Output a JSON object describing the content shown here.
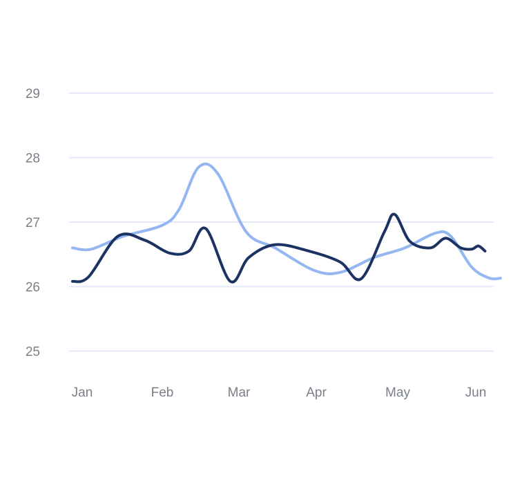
{
  "chart_data": {
    "type": "line",
    "title": "",
    "xlabel": "",
    "ylabel": "",
    "x_tick_labels": [
      "Jan",
      "Feb",
      "Mar",
      "Apr",
      "May",
      "Jun"
    ],
    "y_tick_labels": [
      "25",
      "26",
      "27",
      "28",
      "29"
    ],
    "ylim": [
      25,
      29
    ],
    "grid": true,
    "legend": "none",
    "colors": {
      "series_light": "#94b7f1",
      "series_dark": "#1c3262",
      "grid": "#e4e9fb",
      "tick_text": "#7a7f89"
    },
    "series": [
      {
        "color": "#94b7f1",
        "points": [
          {
            "x": "Jan 1",
            "y": 26.6
          },
          {
            "x": "Jan 8",
            "y": 26.58
          },
          {
            "x": "Jan 20",
            "y": 26.78
          },
          {
            "x": "Feb 5",
            "y": 26.95
          },
          {
            "x": "Feb 12",
            "y": 27.2
          },
          {
            "x": "Feb 20",
            "y": 27.85
          },
          {
            "x": "Feb 28",
            "y": 27.75
          },
          {
            "x": "Mar 9",
            "y": 26.85
          },
          {
            "x": "Mar 20",
            "y": 26.6
          },
          {
            "x": "Apr 5",
            "y": 26.25
          },
          {
            "x": "Apr 15",
            "y": 26.22
          },
          {
            "x": "Apr 28",
            "y": 26.45
          },
          {
            "x": "May 10",
            "y": 26.6
          },
          {
            "x": "May 22",
            "y": 26.83
          },
          {
            "x": "May 28",
            "y": 26.78
          },
          {
            "x": "Jun 7",
            "y": 26.3
          },
          {
            "x": "Jun 15",
            "y": 26.13
          },
          {
            "x": "Jun 20",
            "y": 26.13
          }
        ]
      },
      {
        "color": "#1c3262",
        "points": [
          {
            "x": "Jan 1",
            "y": 26.08
          },
          {
            "x": "Jan 7",
            "y": 26.15
          },
          {
            "x": "Jan 18",
            "y": 26.78
          },
          {
            "x": "Jan 28",
            "y": 26.72
          },
          {
            "x": "Feb 8",
            "y": 26.52
          },
          {
            "x": "Feb 16",
            "y": 26.55
          },
          {
            "x": "Feb 23",
            "y": 26.9
          },
          {
            "x": "Mar 3",
            "y": 26.08
          },
          {
            "x": "Mar 10",
            "y": 26.45
          },
          {
            "x": "Mar 20",
            "y": 26.65
          },
          {
            "x": "Apr 3",
            "y": 26.55
          },
          {
            "x": "Apr 15",
            "y": 26.38
          },
          {
            "x": "Apr 23",
            "y": 26.12
          },
          {
            "x": "May 2",
            "y": 26.85
          },
          {
            "x": "May 6",
            "y": 27.12
          },
          {
            "x": "May 12",
            "y": 26.7
          },
          {
            "x": "May 20",
            "y": 26.6
          },
          {
            "x": "May 26",
            "y": 26.75
          },
          {
            "x": "Jun 2",
            "y": 26.6
          },
          {
            "x": "Jun 7",
            "y": 26.58
          },
          {
            "x": "Jun 10",
            "y": 26.63
          },
          {
            "x": "Jun 13",
            "y": 26.55
          }
        ]
      }
    ]
  }
}
